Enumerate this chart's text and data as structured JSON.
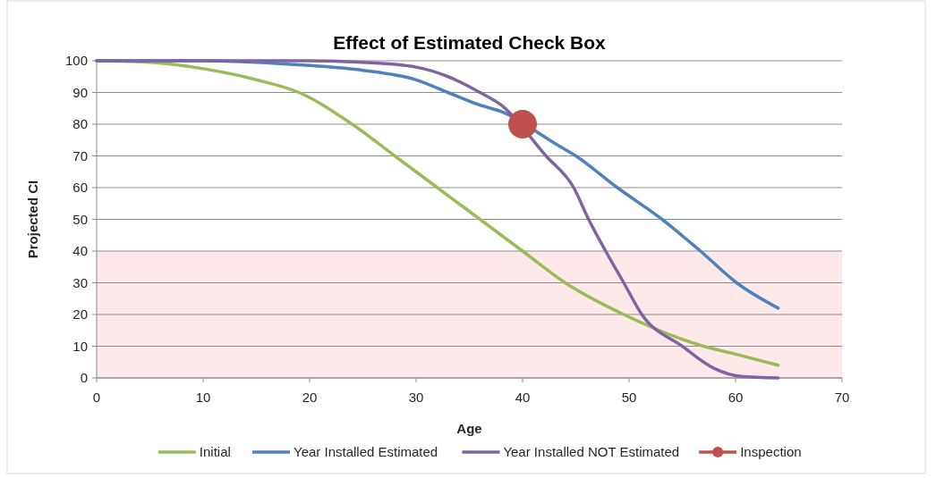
{
  "chart_data": {
    "type": "line",
    "title": "Effect of Estimated  Check Box",
    "xlabel": "Age",
    "ylabel": "Projected CI",
    "xlim": [
      0,
      70
    ],
    "xticks": [
      0,
      10,
      20,
      30,
      40,
      50,
      60,
      70
    ],
    "ylim": [
      0,
      100
    ],
    "yticks": [
      0,
      10,
      20,
      30,
      40,
      50,
      60,
      70,
      80,
      90,
      100
    ],
    "grid": "y",
    "legend": "bottom",
    "bands": [
      {
        "axis": "y",
        "from": 0,
        "to": 40,
        "color": "#fde9ea"
      }
    ],
    "series": [
      {
        "name": "Initial",
        "color": "#9bbb59",
        "x": [
          0,
          5,
          10,
          15,
          19,
          24,
          28,
          32,
          36,
          40,
          44,
          49.5,
          57,
          60,
          64
        ],
        "values": [
          100,
          99.5,
          97.5,
          94,
          90,
          80,
          70,
          60,
          50,
          40,
          30,
          20,
          10,
          7.5,
          4
        ]
      },
      {
        "name": "Year Installed Estimated",
        "color": "#4f81bd",
        "x": [
          0,
          10,
          20,
          25,
          30,
          33,
          36,
          38,
          43,
          45,
          48.9,
          53.1,
          56.7,
          60.1,
          64
        ],
        "values": [
          100,
          100,
          98.5,
          97,
          94,
          90,
          86,
          84,
          74,
          70,
          60,
          50,
          40,
          30,
          22
        ]
      },
      {
        "name": "Year Installed NOT Estimated",
        "color": "#8064a2",
        "x": [
          0,
          20,
          25,
          30,
          33,
          36,
          38,
          42.2,
          44.8,
          46.2,
          47.8,
          49.5,
          51.2,
          55,
          58,
          60.5,
          64
        ],
        "values": [
          100,
          100,
          99.5,
          98,
          95,
          90,
          86,
          70,
          60,
          50,
          40,
          30,
          20,
          10,
          3,
          0.5,
          0
        ]
      },
      {
        "name": "Inspection",
        "type": "scatter",
        "color": "#c0504d",
        "x": [
          40
        ],
        "values": [
          80
        ]
      }
    ]
  }
}
